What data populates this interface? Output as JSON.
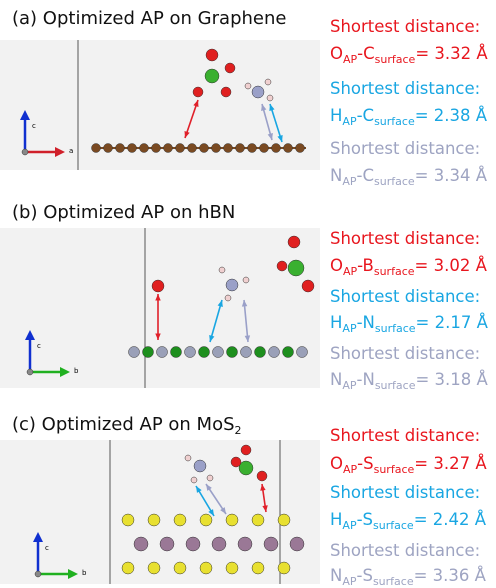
{
  "panels": [
    {
      "title": "(a) Optimized AP on Graphene",
      "axis_labels": [
        "c",
        "a"
      ],
      "distances": [
        {
          "heading": "Shortest distance:",
          "atom": "O",
          "atom_sub": "AP",
          "surface": "-C",
          "surface_sub": "surface",
          "value": "= 3.32 Å",
          "color": "#e8161e"
        },
        {
          "heading": "Shortest distance:",
          "atom": "H",
          "atom_sub": "AP",
          "surface": "-C",
          "surface_sub": "surface",
          "value": "= 2.38 Å",
          "color": "#19a6e2"
        },
        {
          "heading": "Shortest distance:",
          "atom": "N",
          "atom_sub": "AP",
          "surface": "-C",
          "surface_sub": "surface",
          "value": "= 3.34 Å",
          "color": "#9ea4c2"
        }
      ]
    },
    {
      "title": "(b) Optimized AP on hBN",
      "axis_labels": [
        "c",
        "b"
      ],
      "distances": [
        {
          "heading": "Shortest distance:",
          "atom": "O",
          "atom_sub": "AP",
          "surface": "-B",
          "surface_sub": "surface",
          "value": "= 3.02 Å",
          "color": "#e8161e"
        },
        {
          "heading": "Shortest distance:",
          "atom": "H",
          "atom_sub": "AP",
          "surface": "-N",
          "surface_sub": "surface",
          "value": "= 2.17 Å",
          "color": "#19a6e2"
        },
        {
          "heading": "Shortest distance:",
          "atom": "N",
          "atom_sub": "AP",
          "surface": "-N",
          "surface_sub": "surface",
          "value": "= 3.18 Å",
          "color": "#9ea4c2"
        }
      ]
    },
    {
      "title": "(c) Optimized AP on MoS",
      "title_sub": "2",
      "axis_labels": [
        "c",
        "b"
      ],
      "distances": [
        {
          "heading": "Shortest distance:",
          "atom": "O",
          "atom_sub": "AP",
          "surface": "-S",
          "surface_sub": "surface",
          "value": "= 3.27 Å",
          "color": "#e8161e"
        },
        {
          "heading": "Shortest distance:",
          "atom": "H",
          "atom_sub": "AP",
          "surface": "-S",
          "surface_sub": "surface",
          "value": "= 2.42 Å",
          "color": "#19a6e2"
        },
        {
          "heading": "Shortest distance:",
          "atom": "N",
          "atom_sub": "AP",
          "surface": "-S",
          "surface_sub": "surface",
          "value": "= 3.36 Å",
          "color": "#9ea4c2"
        }
      ]
    }
  ]
}
